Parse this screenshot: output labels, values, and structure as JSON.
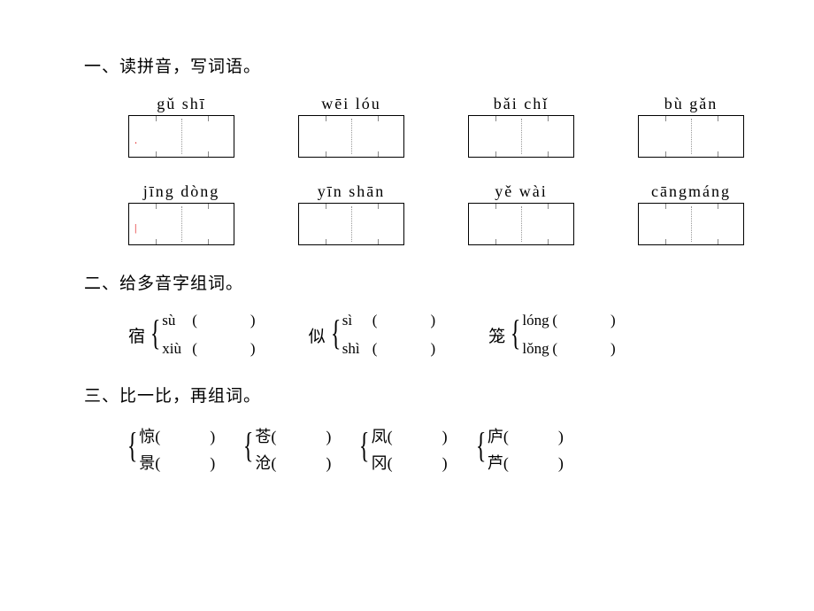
{
  "section1": {
    "title": "一、读拼音，写词语。",
    "row1": [
      {
        "pinyin": "gǔ  shī",
        "mark": "."
      },
      {
        "pinyin": "wēi  lóu",
        "mark": ""
      },
      {
        "pinyin": "bǎi  chǐ",
        "mark": ""
      },
      {
        "pinyin": "bù  gǎn",
        "mark": ""
      }
    ],
    "row2": [
      {
        "pinyin": "jīng dòng",
        "mark": "|"
      },
      {
        "pinyin": "yīn  shān",
        "mark": ""
      },
      {
        "pinyin": "yě  wài",
        "mark": ""
      },
      {
        "pinyin": "cāngmáng",
        "mark": ""
      }
    ]
  },
  "section2": {
    "title": "二、给多音字组词。",
    "items": [
      {
        "char": "宿",
        "r1": "sù",
        "r2": "xiù"
      },
      {
        "char": "似",
        "r1": "sì",
        "r2": "shì"
      },
      {
        "char": "笼",
        "r1": "lóng",
        "r2": "lǒng"
      }
    ]
  },
  "section3": {
    "title": "三、比一比，再组词。",
    "items": [
      {
        "c1": "惊",
        "c2": "景"
      },
      {
        "c1": "苍",
        "c2": "沧"
      },
      {
        "c1": "凤",
        "c2": "冈"
      },
      {
        "c1": "庐",
        "c2": "芦"
      }
    ]
  },
  "paren_open": "(",
  "paren_close": ")"
}
